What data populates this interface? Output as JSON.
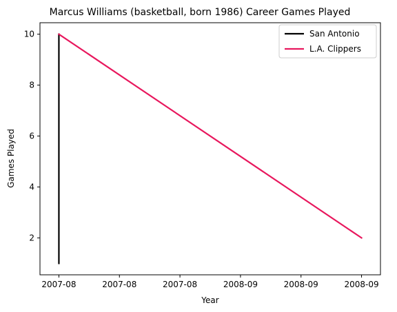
{
  "chart_data": {
    "type": "line",
    "title": "Marcus Williams (basketball, born 1986) Career Games Played",
    "xlabel": "Year",
    "ylabel": "Games Played",
    "x_tick_labels": [
      "2007-08",
      "2007-08",
      "2007-08",
      "2008-09",
      "2008-09",
      "2008-09"
    ],
    "y_ticks": [
      2,
      4,
      6,
      8,
      10
    ],
    "xlim": [
      -0.0625,
      1.0625
    ],
    "ylim": [
      0.55,
      10.45
    ],
    "legend_position": "top-right",
    "series": [
      {
        "name": "San Antonio",
        "color": "#000000",
        "points": [
          [
            0,
            1
          ],
          [
            0,
            10
          ]
        ]
      },
      {
        "name": "L.A. Clippers",
        "color": "#e8175d",
        "points": [
          [
            0,
            10
          ],
          [
            1,
            2
          ]
        ]
      }
    ]
  }
}
